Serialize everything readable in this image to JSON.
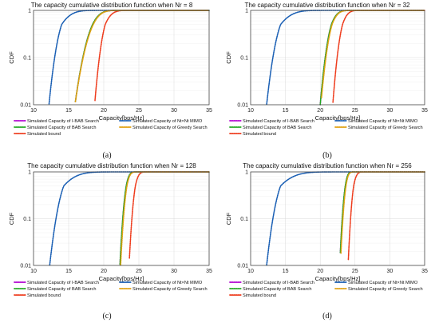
{
  "chart_data": [
    {
      "type": "line",
      "title": "The capacity cumulative distribution function when Nr = 8",
      "xlabel": "Capacity[bps/Hz]",
      "ylabel": "CDF",
      "xlim": [
        10,
        35
      ],
      "ylim": [
        0.01,
        1
      ],
      "yscale": "log",
      "grid": true,
      "x_ticks": [
        "10",
        "15",
        "20",
        "25",
        "30",
        "35"
      ],
      "y_ticks": [
        "0.01",
        "0.1",
        "1"
      ],
      "caption": "(a)",
      "legend_position": "below",
      "series": [
        {
          "name": "Simulated Capacity of I-BAB Search",
          "color": "#b000d0",
          "x01": 15.9,
          "x50": 18.4,
          "x99": 21.0
        },
        {
          "name": "Simulated Capacity of BAB Search",
          "color": "#22aa22",
          "x01": 15.9,
          "x50": 18.4,
          "x99": 21.0
        },
        {
          "name": "Simulated bound",
          "color": "#ee3b1c",
          "x01": 18.7,
          "x50": 20.2,
          "x99": 22.5
        },
        {
          "name": "Simulated Capacity of Nt×Nt MIMO",
          "color": "#1a5fb4",
          "x01": 12.2,
          "x50": 14.0,
          "x99": 17.5
        },
        {
          "name": "Simulated Capacity of Greedy Search",
          "color": "#e0a010",
          "x01": 15.9,
          "x50": 18.5,
          "x99": 21.1
        }
      ]
    },
    {
      "type": "line",
      "title": "The capacity cumulative distribution function when Nr = 32",
      "xlabel": "Capacity[bps/Hz]",
      "ylabel": "CDF",
      "xlim": [
        10,
        35
      ],
      "ylim": [
        0.01,
        1
      ],
      "yscale": "log",
      "grid": true,
      "x_ticks": [
        "10",
        "15",
        "20",
        "25",
        "30",
        "35"
      ],
      "y_ticks": [
        "0.01",
        "0.1",
        "1"
      ],
      "caption": "(b)",
      "legend_position": "below",
      "series": [
        {
          "name": "Simulated Capacity of I-BAB Search",
          "color": "#b000d0",
          "x01": 20.0,
          "x50": 21.6,
          "x99": 23.6
        },
        {
          "name": "Simulated Capacity of BAB Search",
          "color": "#22aa22",
          "x01": 20.0,
          "x50": 21.6,
          "x99": 23.6
        },
        {
          "name": "Simulated bound",
          "color": "#ee3b1c",
          "x01": 21.8,
          "x50": 23.2,
          "x99": 25.0
        },
        {
          "name": "Simulated Capacity of Nt×Nt MIMO",
          "color": "#1a5fb4",
          "x01": 12.3,
          "x50": 14.3,
          "x99": 18.5
        },
        {
          "name": "Simulated Capacity of Greedy Search",
          "color": "#e0a010",
          "x01": 20.1,
          "x50": 21.7,
          "x99": 23.7
        }
      ]
    },
    {
      "type": "line",
      "title": "The capacity cumulative distribution function when Nr = 128",
      "xlabel": "Capacity[bps/Hz]",
      "ylabel": "CDF",
      "xlim": [
        10,
        35
      ],
      "ylim": [
        0.01,
        1
      ],
      "yscale": "log",
      "grid": true,
      "x_ticks": [
        "10",
        "15",
        "20",
        "25",
        "30",
        "35"
      ],
      "y_ticks": [
        "0.01",
        "0.1",
        "1"
      ],
      "caption": "(c)",
      "legend_position": "below",
      "series": [
        {
          "name": "Simulated Capacity of I-BAB Search",
          "color": "#b000d0",
          "x01": 22.3,
          "x50": 23.2,
          "x99": 24.2
        },
        {
          "name": "Simulated Capacity of BAB Search",
          "color": "#22aa22",
          "x01": 22.3,
          "x50": 23.2,
          "x99": 24.2
        },
        {
          "name": "Simulated bound",
          "color": "#ee3b1c",
          "x01": 23.6,
          "x50": 24.5,
          "x99": 25.6
        },
        {
          "name": "Simulated Capacity of Nt×Nt MIMO",
          "color": "#1a5fb4",
          "x01": 12.3,
          "x50": 14.3,
          "x99": 19.0
        },
        {
          "name": "Simulated Capacity of Greedy Search",
          "color": "#e0a010",
          "x01": 22.4,
          "x50": 23.3,
          "x99": 24.3
        }
      ]
    },
    {
      "type": "line",
      "title": "The capacity cumulative distribution function when Nr = 256",
      "xlabel": "Capacity[bps/Hz]",
      "ylabel": "CDF",
      "xlim": [
        10,
        35
      ],
      "ylim": [
        0.01,
        1
      ],
      "yscale": "log",
      "grid": true,
      "x_ticks": [
        "10",
        "15",
        "20",
        "25",
        "30",
        "35"
      ],
      "y_ticks": [
        "0.01",
        "0.1",
        "1"
      ],
      "caption": "(d)",
      "legend_position": "below",
      "series": [
        {
          "name": "Simulated Capacity of I-BAB Search",
          "color": "#b000d0",
          "x01": 22.8,
          "x50": 23.6,
          "x99": 24.4
        },
        {
          "name": "Simulated Capacity of BAB Search",
          "color": "#22aa22",
          "x01": 22.8,
          "x50": 23.6,
          "x99": 24.4
        },
        {
          "name": "Simulated bound",
          "color": "#ee3b1c",
          "x01": 24.0,
          "x50": 24.8,
          "x99": 25.8
        },
        {
          "name": "Simulated Capacity of Nt×Nt MIMO",
          "color": "#1a5fb4",
          "x01": 12.3,
          "x50": 14.3,
          "x99": 19.5
        },
        {
          "name": "Simulated Capacity of Greedy Search",
          "color": "#e0a010",
          "x01": 22.9,
          "x50": 23.7,
          "x99": 24.5
        }
      ]
    }
  ]
}
